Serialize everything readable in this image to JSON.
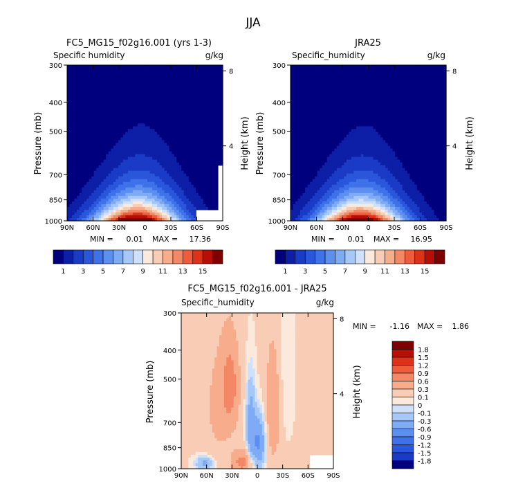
{
  "figure_title": "JJA",
  "chart_data": [
    {
      "type": "heatmap",
      "title": "FC5_MG15_f02g16.001 (yrs 1-3)",
      "subtitle_left": "Specific humidity",
      "subtitle_right": "g/kg",
      "ylabel": "Pressure (mb)",
      "y2label": "Height (km)",
      "x_ticks": [
        "90N",
        "60N",
        "30N",
        "0",
        "30S",
        "60S",
        "90S"
      ],
      "y_ticks": [
        "300",
        "400",
        "500",
        "700",
        "850",
        "1000"
      ],
      "y2_ticks": [
        "8",
        "4"
      ],
      "min_label": "MIN =",
      "min_value": "0.01",
      "max_label": "MAX =",
      "max_value": "17.36",
      "max": 17.36,
      "colorbar_labels": [
        "1",
        "3",
        "5",
        "7",
        "9",
        "11",
        "13",
        "15"
      ],
      "colors": [
        "#00007f",
        "#0d1fa6",
        "#1a3bc6",
        "#2a56dc",
        "#3f72e8",
        "#5c8ff0",
        "#7fabf5",
        "#a6c8f8",
        "#cfe0fa",
        "#fbe9dc",
        "#f9cdb5",
        "#f7ad8c",
        "#f48765",
        "#ee5c3c",
        "#dc3218",
        "#b50f06",
        "#7f0000"
      ]
    },
    {
      "type": "heatmap",
      "title": "JRA25",
      "subtitle_left": "Specific_humidity",
      "subtitle_right": "g/kg",
      "ylabel": "Pressure (mb)",
      "y2label": "Height (km)",
      "x_ticks": [
        "90N",
        "60N",
        "30N",
        "0",
        "30S",
        "60S",
        "90S"
      ],
      "y_ticks": [
        "300",
        "400",
        "500",
        "700",
        "850",
        "1000"
      ],
      "y2_ticks": [
        "8",
        "4"
      ],
      "min_label": "MIN =",
      "min_value": "0.01",
      "max_label": "MAX =",
      "max_value": "16.95",
      "max": 16.95,
      "colorbar_labels": [
        "1",
        "3",
        "5",
        "7",
        "9",
        "11",
        "13",
        "15"
      ]
    },
    {
      "type": "heatmap",
      "title": "FC5_MG15_f02g16.001 - JRA25",
      "subtitle_left": "Specific_humidity",
      "subtitle_right": "g/kg",
      "ylabel": "Pressure (mb)",
      "y2label": "Height (km)",
      "x_ticks": [
        "90N",
        "60N",
        "30N",
        "0",
        "30S",
        "60S",
        "90S"
      ],
      "y_ticks": [
        "300",
        "400",
        "500",
        "700",
        "850",
        "1000"
      ],
      "y2_ticks": [
        "8",
        "4"
      ],
      "min_label": "MIN =",
      "min_value": "-1.16",
      "max_label": "MAX =",
      "max_value": "1.86",
      "colorbar_labels": [
        "1.8",
        "1.5",
        "1.2",
        "0.9",
        "0.6",
        "0.3",
        "0.1",
        "0",
        "-0.1",
        "-0.3",
        "-0.6",
        "-0.9",
        "-1.2",
        "-1.5",
        "-1.8"
      ],
      "colors": [
        "#7f0000",
        "#b50f06",
        "#dc3218",
        "#ee5c3c",
        "#f48765",
        "#f7ad8c",
        "#f9cdb5",
        "#fbe9dc",
        "#cfe0fa",
        "#a6c8f8",
        "#7fabf5",
        "#5c8ff0",
        "#3f72e8",
        "#2a56dc",
        "#1a3bc6",
        "#00007f"
      ]
    }
  ]
}
